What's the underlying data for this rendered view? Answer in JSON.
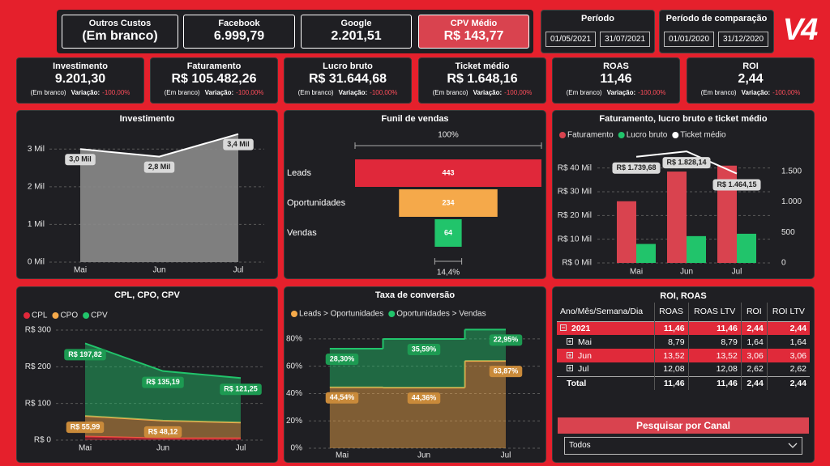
{
  "logo": "V4",
  "header_cards": [
    {
      "title": "Outros Custos",
      "value": "(Em branco)"
    },
    {
      "title": "Facebook",
      "value": "6.999,79"
    },
    {
      "title": "Google",
      "value": "2.201,51"
    },
    {
      "title": "CPV Médio",
      "value": "R$ 143,77",
      "highlight": true
    }
  ],
  "periods": [
    {
      "title": "Período",
      "start": "01/05/2021",
      "end": "31/07/2021"
    },
    {
      "title": "Período de comparação",
      "start": "01/01/2020",
      "end": "31/12/2020"
    }
  ],
  "kpis": [
    {
      "title": "Investimento",
      "value": "9.201,30",
      "note": "(Em branco)",
      "change_label": "Variação:",
      "change": "-100,00%"
    },
    {
      "title": "Faturamento",
      "value": "R$ 105.482,26",
      "note": "(Em branco)",
      "change_label": "Variação:",
      "change": "-100,00%"
    },
    {
      "title": "Lucro bruto",
      "value": "R$ 31.644,68",
      "note": "(Em branco)",
      "change_label": "Variação:",
      "change": "-100,00%"
    },
    {
      "title": "Ticket médio",
      "value": "R$ 1.648,16",
      "note": "(Em branco)",
      "change_label": "Variação:",
      "change": "-100,00%"
    },
    {
      "title": "ROAS",
      "value": "11,46",
      "note": "(Em branco)",
      "change_label": "Variação:",
      "change": "-100,00%"
    },
    {
      "title": "ROI",
      "value": "2,44",
      "note": "(Em branco)",
      "change_label": "Variação:",
      "change": "-100,00%"
    }
  ],
  "chart_data": [
    {
      "type": "area",
      "title": "Investimento",
      "categories": [
        "Mai",
        "Jun",
        "Jul"
      ],
      "values": [
        3000,
        2800,
        3400
      ],
      "value_labels": [
        "3,0 Mil",
        "2,8 Mil",
        "3,4 Mil"
      ],
      "color": "#8a8a8a",
      "line_color": "#ffffff",
      "ylim": [
        0,
        3500
      ],
      "yticks": [
        {
          "value": 0,
          "label": "0 Mil"
        },
        {
          "value": 1000,
          "label": "1 Mil"
        },
        {
          "value": 2000,
          "label": "2 Mil"
        },
        {
          "value": 3000,
          "label": "3 Mil"
        }
      ],
      "grid": true
    },
    {
      "type": "funnel",
      "title": "Funil de vendas",
      "categories": [
        "Leads",
        "Oportunidades",
        "Vendas"
      ],
      "values": [
        443,
        234,
        64
      ],
      "colors": [
        "#e0283a",
        "#f5a94a",
        "#21c46b"
      ],
      "top_label": "100%",
      "bottom_label": "14,4%"
    },
    {
      "type": "combo",
      "title": "Faturamento, lucro bruto e ticket médio",
      "categories": [
        "Mai",
        "Jun",
        "Jul"
      ],
      "series": [
        {
          "name": "Faturamento",
          "type": "bar",
          "color": "#d9434f",
          "values": [
            26000,
            38500,
            41000
          ]
        },
        {
          "name": "Lucro bruto",
          "type": "bar",
          "color": "#21c46b",
          "values": [
            8000,
            11300,
            12300
          ]
        },
        {
          "name": "Ticket médio",
          "type": "line",
          "axis": "y2",
          "color": "#ffffff",
          "values": [
            1739.68,
            1828.14,
            1464.15
          ],
          "value_labels": [
            "R$ 1.739,68",
            "R$ 1.828,14",
            "R$ 1.464,15"
          ]
        }
      ],
      "ylim": [
        0,
        45000
      ],
      "yticks": [
        {
          "value": 0,
          "label": "R$ 0 Mil"
        },
        {
          "value": 10000,
          "label": "R$ 10 Mil"
        },
        {
          "value": 20000,
          "label": "R$ 20 Mil"
        },
        {
          "value": 30000,
          "label": "R$ 30 Mil"
        },
        {
          "value": 40000,
          "label": "R$ 40 Mil"
        }
      ],
      "y2lim": [
        0,
        1750
      ],
      "y2ticks": [
        0,
        500,
        {
          "value": 1000,
          "label": "1.000"
        },
        {
          "value": 1500,
          "label": "1.500"
        }
      ],
      "grid": true,
      "legend": "top-left"
    },
    {
      "type": "stacked_area",
      "title": "CPL, CPO, CPV",
      "categories": [
        "Mai",
        "Jun",
        "Jul"
      ],
      "series": [
        {
          "name": "CPL",
          "color": "#e0283a",
          "values": [
            10,
            5,
            5
          ]
        },
        {
          "name": "CPO",
          "color": "#f5a94a",
          "values": [
            55.99,
            48.12,
            43
          ],
          "value_labels": [
            "R$ 55,99",
            "R$ 48,12",
            null
          ]
        },
        {
          "name": "CPV",
          "color": "#21c46b",
          "values": [
            197.82,
            135.19,
            121.25
          ],
          "value_labels": [
            "R$ 197,82",
            "R$ 135,19",
            "R$ 121,25"
          ]
        }
      ],
      "ylim": [
        0,
        300
      ],
      "yticks": [
        {
          "value": 0,
          "label": "R$ 0"
        },
        {
          "value": 100,
          "label": "R$ 100"
        },
        {
          "value": 200,
          "label": "R$ 200"
        },
        {
          "value": 300,
          "label": "R$ 300"
        }
      ],
      "grid": true,
      "legend": "top-left"
    },
    {
      "type": "stacked_step",
      "title": "Taxa de conversão",
      "categories": [
        "Mai",
        "Jun",
        "Jul"
      ],
      "series": [
        {
          "name": "Leads > Oportunidades",
          "color": "#f5a94a",
          "values": [
            44.54,
            44.36,
            63.87
          ],
          "value_labels": [
            "44,54%",
            "44,36%",
            "63,87%"
          ]
        },
        {
          "name": "Oportunidades > Vendas",
          "color": "#21c46b",
          "values": [
            28.3,
            35.59,
            22.95
          ],
          "value_labels": [
            "28,30%",
            "35,59%",
            "22,95%"
          ]
        }
      ],
      "ylim": [
        0,
        90
      ],
      "yticks": [
        {
          "value": 0,
          "label": "0%"
        },
        {
          "value": 20,
          "label": "20%"
        },
        {
          "value": 40,
          "label": "40%"
        },
        {
          "value": 60,
          "label": "60%"
        },
        {
          "value": 80,
          "label": "80%"
        }
      ],
      "grid": true,
      "legend": "top-left"
    }
  ],
  "table": {
    "title": "ROI, ROAS",
    "columns": [
      "Ano/Mês/Semana/Dia",
      "ROAS",
      "ROAS LTV",
      "ROI",
      "ROI LTV"
    ],
    "rows": [
      [
        "2021",
        "11,46",
        "11,46",
        "2,44",
        "2,44"
      ],
      [
        "Mai",
        "8,79",
        "8,79",
        "1,64",
        "1,64"
      ],
      [
        "Jun",
        "13,52",
        "13,52",
        "3,06",
        "3,06"
      ],
      [
        "Jul",
        "12,08",
        "12,08",
        "2,62",
        "2,62"
      ],
      [
        "Total",
        "11,46",
        "11,46",
        "2,44",
        "2,44"
      ]
    ],
    "highlighted_rows": [
      0,
      2
    ]
  },
  "filter": {
    "button": "Pesquisar por Canal",
    "dropdown": "Todos"
  }
}
